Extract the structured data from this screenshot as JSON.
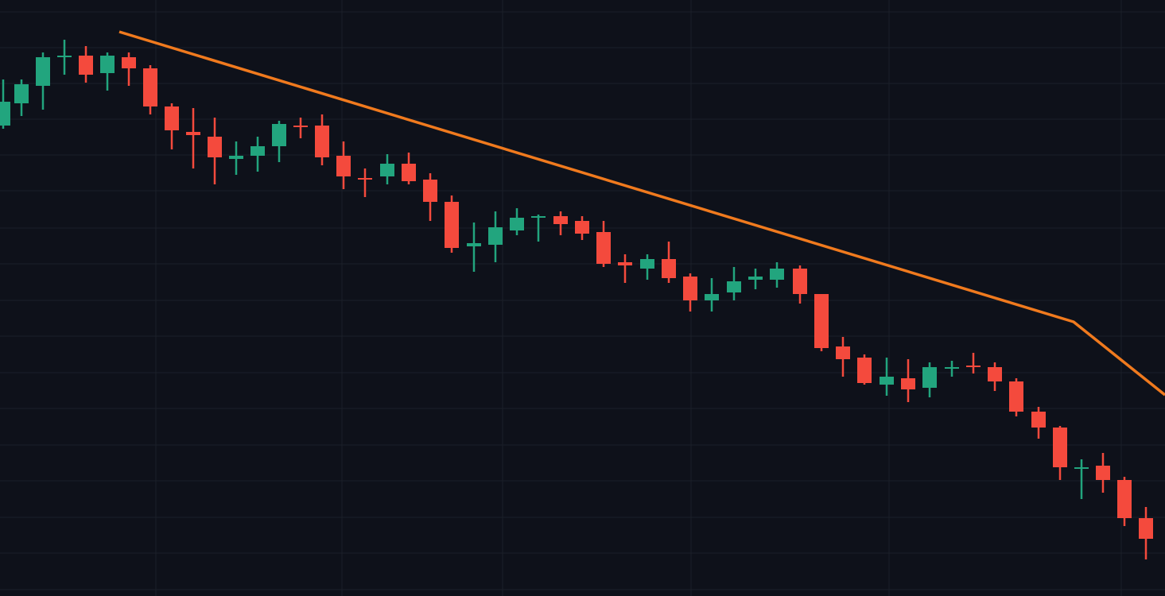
{
  "chart_data": {
    "type": "candlestick",
    "background": "#0e111a",
    "grid": true,
    "grid_color": "#1b1f29",
    "up_color": "#22a57e",
    "down_color": "#f44a3d",
    "xlim": [
      0,
      1465
    ],
    "ylim": [
      0,
      750
    ],
    "xticks": [
      196,
      430,
      632,
      869,
      1118,
      1410
    ],
    "yticks": [
      735,
      690,
      645,
      600,
      555,
      510,
      463,
      418,
      372,
      327,
      281,
      236,
      190,
      145,
      99,
      54,
      8
    ],
    "x": [
      4,
      27,
      54,
      81,
      108,
      135,
      162,
      189,
      216,
      243,
      270,
      297,
      324,
      351,
      378,
      405,
      432,
      459,
      487,
      514,
      541,
      568,
      596,
      623,
      650,
      677,
      705,
      732,
      759,
      786,
      814,
      841,
      868,
      895,
      923,
      950,
      977,
      1006,
      1033,
      1060,
      1087,
      1115,
      1142,
      1169,
      1197,
      1224,
      1251,
      1278,
      1306,
      1333,
      1360,
      1387,
      1414,
      1441
    ],
    "open": [
      592,
      620,
      642,
      678,
      680,
      658,
      678,
      664,
      616,
      584,
      578,
      550,
      554,
      566,
      592,
      592,
      554,
      526,
      528,
      544,
      524,
      496,
      440,
      442,
      460,
      476,
      478,
      472,
      458,
      420,
      412,
      424,
      402,
      372,
      382,
      398,
      398,
      412,
      380,
      314,
      300,
      266,
      274,
      262,
      286,
      290,
      288,
      270,
      232,
      212,
      160,
      164,
      146,
      98
    ],
    "high": [
      650,
      650,
      684,
      700,
      692,
      684,
      684,
      668,
      620,
      614,
      602,
      572,
      578,
      598,
      602,
      606,
      572,
      538,
      556,
      558,
      532,
      504,
      470,
      484,
      488,
      480,
      484,
      478,
      472,
      430,
      430,
      446,
      406,
      400,
      414,
      412,
      420,
      416,
      380,
      326,
      304,
      300,
      298,
      294,
      296,
      306,
      294,
      274,
      238,
      214,
      172,
      180,
      150,
      112
    ],
    "low": [
      588,
      604,
      612,
      656,
      646,
      636,
      642,
      606,
      562,
      538,
      518,
      530,
      534,
      546,
      576,
      542,
      512,
      502,
      518,
      518,
      472,
      432,
      408,
      420,
      454,
      446,
      454,
      448,
      414,
      394,
      398,
      394,
      358,
      358,
      372,
      386,
      388,
      368,
      308,
      276,
      266,
      252,
      244,
      250,
      276,
      280,
      258,
      226,
      198,
      146,
      122,
      130,
      88,
      46
    ],
    "close": [
      622,
      644,
      678,
      680,
      656,
      680,
      664,
      616,
      586,
      580,
      552,
      554,
      566,
      594,
      590,
      552,
      528,
      524,
      544,
      522,
      496,
      438,
      444,
      464,
      476,
      478,
      468,
      456,
      418,
      416,
      424,
      400,
      372,
      380,
      396,
      402,
      412,
      380,
      312,
      298,
      268,
      276,
      260,
      288,
      288,
      288,
      270,
      232,
      212,
      162,
      162,
      146,
      98,
      72
    ],
    "trendline": {
      "color": "#f07a1e",
      "x": [
        150,
        1350,
        1465
      ],
      "y": [
        710,
        345,
        253
      ]
    }
  }
}
